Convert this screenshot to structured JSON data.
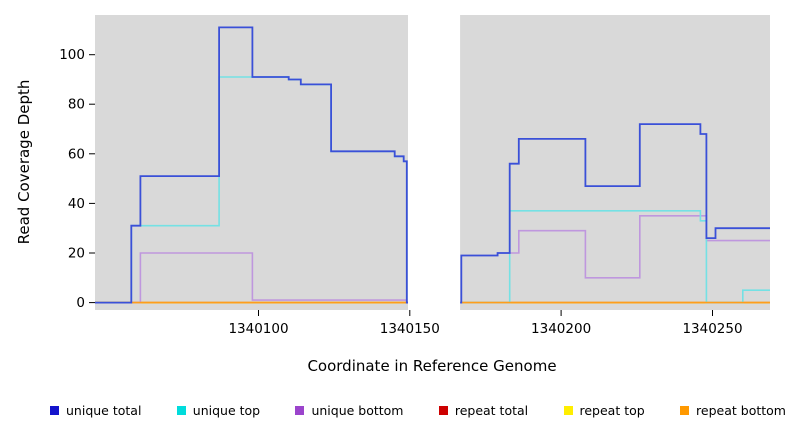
{
  "chart_data": {
    "type": "line",
    "variant": "step",
    "title": "",
    "xlabel": "Coordinate in Reference Genome",
    "ylabel": "Read Coverage Depth",
    "xlim": [
      1340046,
      1340269
    ],
    "ylim": [
      -3,
      116
    ],
    "x_ticks": [
      1340100,
      1340150,
      1340200,
      1340250
    ],
    "y_ticks": [
      0,
      20,
      40,
      60,
      80,
      100
    ],
    "plot_background": "#d9d9d9",
    "grid": false,
    "legend_position": "bottom",
    "gap_region": {
      "x_start": 1340149.4,
      "x_end": 1340166.6,
      "fill": "#ffffff"
    },
    "series": [
      {
        "name": "repeat total",
        "color": "#cd0000",
        "width": 1.5,
        "steps": [
          [
            1340046,
            0
          ]
        ]
      },
      {
        "name": "repeat top",
        "color": "#ffff00",
        "width": 1.5,
        "steps": [
          [
            1340046,
            0
          ]
        ]
      },
      {
        "name": "unique bottom",
        "color": "#bf97de",
        "width": 1.6,
        "steps": [
          [
            1340046,
            0
          ],
          [
            1340061,
            20
          ],
          [
            1340098,
            1
          ],
          [
            1340149,
            0
          ],
          [
            1340167,
            19
          ],
          [
            1340179,
            20
          ],
          [
            1340186,
            29
          ],
          [
            1340208,
            10
          ],
          [
            1340226,
            35
          ],
          [
            1340248,
            25
          ]
        ]
      },
      {
        "name": "unique top",
        "color": "#74e1e4",
        "width": 1.6,
        "steps": [
          [
            1340046,
            0
          ],
          [
            1340058,
            31
          ],
          [
            1340087,
            91
          ],
          [
            1340110,
            90
          ],
          [
            1340114,
            88
          ],
          [
            1340124,
            61
          ],
          [
            1340145,
            59
          ],
          [
            1340148,
            57
          ],
          [
            1340149,
            0
          ],
          [
            1340183,
            37
          ],
          [
            1340246,
            33
          ],
          [
            1340248,
            0
          ],
          [
            1340260,
            5
          ]
        ]
      },
      {
        "name": "repeat bottom",
        "color": "#ff9d1c",
        "width": 1.6,
        "steps": [
          [
            1340046,
            0
          ]
        ]
      },
      {
        "name": "unique total",
        "color": "#3a50d8",
        "width": 1.8,
        "steps": [
          [
            1340046,
            0
          ],
          [
            1340058,
            31
          ],
          [
            1340061,
            51
          ],
          [
            1340087,
            111
          ],
          [
            1340098,
            91
          ],
          [
            1340110,
            90
          ],
          [
            1340114,
            88
          ],
          [
            1340124,
            61
          ],
          [
            1340145,
            59
          ],
          [
            1340148,
            57
          ],
          [
            1340149,
            0
          ],
          [
            1340167,
            19
          ],
          [
            1340179,
            20
          ],
          [
            1340183,
            56
          ],
          [
            1340186,
            66
          ],
          [
            1340208,
            47
          ],
          [
            1340226,
            72
          ],
          [
            1340246,
            68
          ],
          [
            1340248,
            26
          ],
          [
            1340251,
            30
          ]
        ]
      }
    ],
    "legend": [
      {
        "label": "unique total",
        "color": "#1414cc"
      },
      {
        "label": "unique top",
        "color": "#00dcdc"
      },
      {
        "label": "unique bottom",
        "color": "#9b44cc"
      },
      {
        "label": "repeat total",
        "color": "#cd0000"
      },
      {
        "label": "repeat top",
        "color": "#ffee00"
      },
      {
        "label": "repeat bottom",
        "color": "#ff9900"
      }
    ]
  }
}
